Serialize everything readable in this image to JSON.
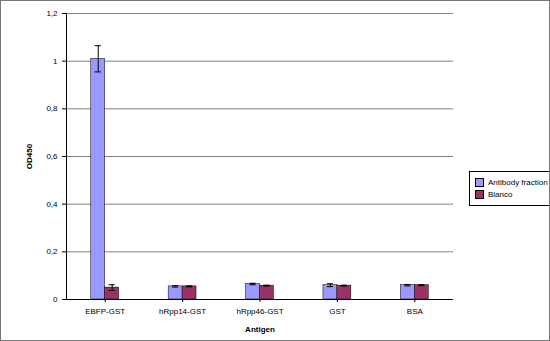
{
  "chart_data": {
    "type": "bar",
    "x_label": "Antigen",
    "y_label": "OD450",
    "categories": [
      "EBFP-GST",
      "hRpp14-GST",
      "hRpp46-GST",
      "GST",
      "BSA"
    ],
    "series": [
      {
        "name": "Antibody fraction",
        "color": "#9999ff",
        "values": [
          1.01,
          0.055,
          0.065,
          0.06,
          0.06
        ],
        "errors": [
          0.055,
          0.003,
          0.003,
          0.006,
          0.003
        ]
      },
      {
        "name": "Blanco",
        "color": "#993366",
        "values": [
          0.05,
          0.055,
          0.058,
          0.058,
          0.06
        ],
        "errors": [
          0.012,
          0.002,
          0.002,
          0.002,
          0.002
        ]
      }
    ],
    "ylim": [
      0,
      1.2
    ],
    "yticks": [
      0,
      {
        "value": 0.2,
        "label": "0,2"
      },
      {
        "value": 0.4,
        "label": "0,4"
      },
      {
        "value": 0.6,
        "label": "0,6"
      },
      {
        "value": 0.8,
        "label": "0,8"
      },
      1,
      {
        "value": 1.2,
        "label": "1,2"
      }
    ],
    "grid": true,
    "legend": "right"
  }
}
